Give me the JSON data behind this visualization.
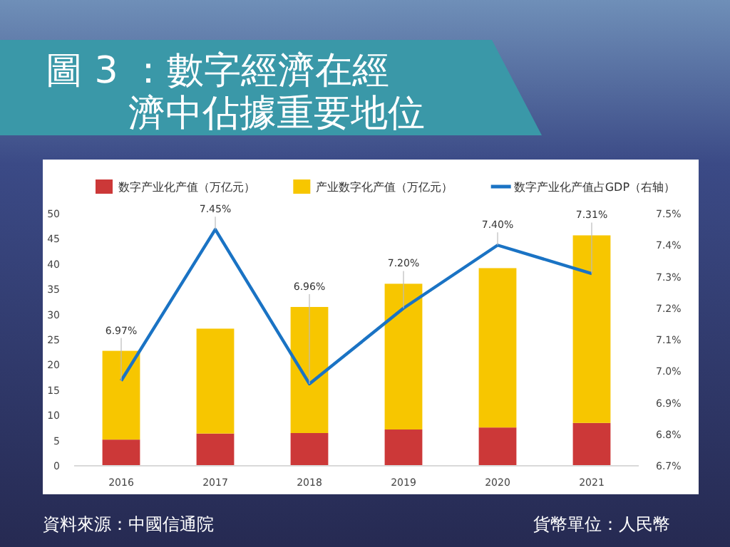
{
  "chart_data": {
    "type": "bar",
    "title": "圖 3 ：數字經濟在經濟中佔據重要地位",
    "categories": [
      "2016",
      "2017",
      "2018",
      "2019",
      "2020",
      "2021"
    ],
    "stacked": true,
    "series": [
      {
        "name": "数字产业化产值（万亿元）",
        "color": "#cc3838",
        "values": [
          5.2,
          6.4,
          6.5,
          7.2,
          7.6,
          8.5
        ]
      },
      {
        "name": "产业数字化产值（万亿元）",
        "color": "#f7c600",
        "values": [
          17.6,
          20.8,
          25.0,
          28.9,
          31.6,
          37.2
        ]
      },
      {
        "name": "数字产业化产值占GDP（右轴）",
        "type": "line",
        "axis": "y2",
        "color": "#1a73c4",
        "values": [
          6.97,
          7.45,
          6.96,
          7.2,
          7.4,
          7.31
        ],
        "value_labels": [
          "6.97%",
          "7.45%",
          "6.96%",
          "7.20%",
          "7.40%",
          "7.31%"
        ]
      }
    ],
    "ylim": [
      0,
      50
    ],
    "yticks": [
      0,
      5,
      10,
      15,
      20,
      25,
      30,
      35,
      40,
      45,
      50
    ],
    "y2lim": [
      6.7,
      7.5
    ],
    "y2ticks": [
      {
        "value": 6.7,
        "label": "6.7%"
      },
      {
        "value": 6.8,
        "label": "6.8%"
      },
      {
        "value": 6.9,
        "label": "6.9%"
      },
      {
        "value": 7.0,
        "label": "7.0%"
      },
      {
        "value": 7.1,
        "label": "7.1%"
      },
      {
        "value": 7.2,
        "label": "7.2%"
      },
      {
        "value": 7.3,
        "label": "7.3%"
      },
      {
        "value": 7.4,
        "label": "7.4%"
      },
      {
        "value": 7.5,
        "label": "7.5%"
      }
    ],
    "legend": "top",
    "grid": false,
    "annotations": [
      "資料來源：中國信通院",
      "貨幣單位：人民幣"
    ]
  }
}
